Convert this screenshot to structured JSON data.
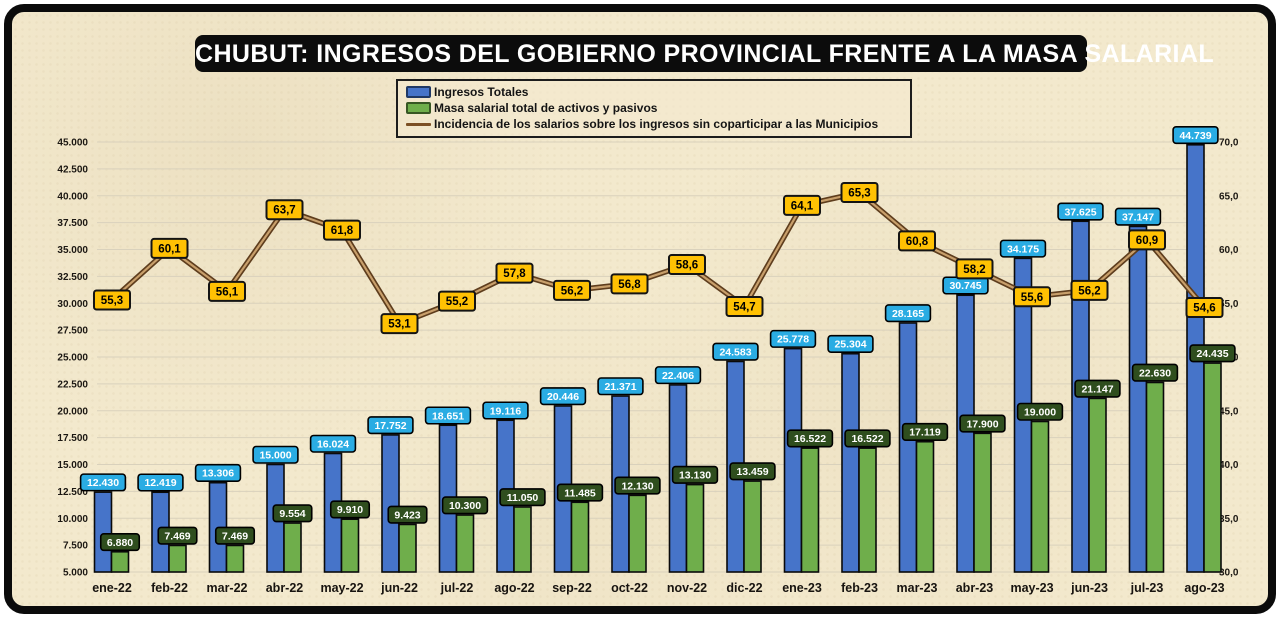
{
  "title": "CHUBUT: INGRESOS DEL GOBIERNO PROVINCIAL FRENTE A LA MASA SALARIAL",
  "legend": {
    "items": [
      {
        "label": "Ingresos Totales",
        "marker": "blue-swatch",
        "color": "#4674c9"
      },
      {
        "label": "Masa salarial total de activos y pasivos",
        "marker": "green-swatch",
        "color": "#6fae4b"
      },
      {
        "label": "Incidencia de los salarios sobre los ingresos sin coparticipar a las Municipios",
        "marker": "brown-line",
        "color": "#7b4f24"
      }
    ]
  },
  "colors": {
    "background": "#f3e9cd",
    "frame": "#0b0b0b",
    "gridline": "#d9d1bc",
    "ingresos_bar": "#4674c9",
    "ingresos_label_bg": "#2aace3",
    "masa_bar": "#6fae4b",
    "masa_label_bg": "#2f4e1e",
    "line_outer": "#5e3d1d",
    "line_core": "#c89f6b",
    "line_label_bg": "#ffc103"
  },
  "chart_data": {
    "type": "bar",
    "subtype": "grouped bars + line overlay (dual axis)",
    "title": "CHUBUT: INGRESOS DEL GOBIERNO PROVINCIAL FRENTE A LA MASA SALARIAL",
    "categories": [
      "ene-22",
      "feb-22",
      "mar-22",
      "abr-22",
      "may-22",
      "jun-22",
      "jul-22",
      "ago-22",
      "sep-22",
      "oct-22",
      "nov-22",
      "dic-22",
      "ene-23",
      "feb-23",
      "mar-23",
      "abr-23",
      "may-23",
      "jun-23",
      "jul-23",
      "ago-23"
    ],
    "series": [
      {
        "name": "Ingresos Totales",
        "type": "bar",
        "axis": "left",
        "color": "#4674c9",
        "label_bg": "#2aace3",
        "label_color": "#ffffff",
        "values": [
          12430,
          12419,
          13306,
          15000,
          16024,
          17752,
          18651,
          19116,
          20446,
          21371,
          22406,
          24583,
          25778,
          25304,
          28165,
          30745,
          34175,
          37625,
          37147,
          44739
        ],
        "labels": [
          "12.430",
          "12.419",
          "13.306",
          "15.000",
          "16.024",
          "17.752",
          "18.651",
          "19.116",
          "20.446",
          "21.371",
          "22.406",
          "24.583",
          "25.778",
          "25.304",
          "28.165",
          "30.745",
          "34.175",
          "37.625",
          "37.147",
          "44.739"
        ]
      },
      {
        "name": "Masa salarial total de activos y pasivos",
        "type": "bar",
        "axis": "left",
        "color": "#6fae4b",
        "label_bg": "#2f4e1e",
        "label_color": "#ffffff",
        "values": [
          6880,
          7469,
          7469,
          9554,
          9910,
          9423,
          10300,
          11050,
          11485,
          12130,
          13130,
          13459,
          16522,
          16522,
          17119,
          17900,
          19000,
          21147,
          22630,
          24435
        ],
        "labels": [
          "6.880",
          "7.469",
          "7.469",
          "9.554",
          "9.910",
          "9.423",
          "10.300",
          "11.050",
          "11.485",
          "12.130",
          "13.130",
          "13.459",
          "16.522",
          "16.522",
          "17.119",
          "17.900",
          "19.000",
          "21.147",
          "22.630",
          "24.435"
        ]
      },
      {
        "name": "Incidencia de los salarios sobre los ingresos sin coparticipar a las Municipios",
        "type": "line",
        "axis": "right",
        "color": "#5e3d1d",
        "color_core": "#c89f6b",
        "label_bg": "#ffc103",
        "label_color": "#000000",
        "values": [
          55.3,
          60.1,
          56.1,
          63.7,
          61.8,
          53.1,
          55.2,
          57.8,
          56.2,
          56.8,
          58.6,
          54.7,
          64.1,
          65.3,
          60.8,
          58.2,
          55.6,
          56.2,
          60.9,
          54.6
        ],
        "labels": [
          "55,3",
          "60,1",
          "56,1",
          "63,7",
          "61,8",
          "53,1",
          "55,2",
          "57,8",
          "56,2",
          "56,8",
          "58,6",
          "54,7",
          "64,1",
          "65,3",
          "60,8",
          "58,2",
          "55,6",
          "56,2",
          "60,9",
          "54,6"
        ]
      }
    ],
    "left_axis": {
      "min": 5000,
      "max": 45000,
      "step": 2500,
      "tick_labels": [
        "5.000",
        "7.500",
        "10.000",
        "12.500",
        "15.000",
        "17.500",
        "20.000",
        "22.500",
        "25.000",
        "27.500",
        "30.000",
        "32.500",
        "35.000",
        "37.500",
        "40.000",
        "42.500",
        "45.000"
      ]
    },
    "right_axis": {
      "min": 30,
      "max": 70,
      "step": 5,
      "tick_labels": [
        "30,0",
        "35,0",
        "40,0",
        "45,0",
        "50,0",
        "55,0",
        "60,0",
        "65,0",
        "70,0"
      ]
    },
    "grid": true,
    "legend_position": "top-center"
  }
}
